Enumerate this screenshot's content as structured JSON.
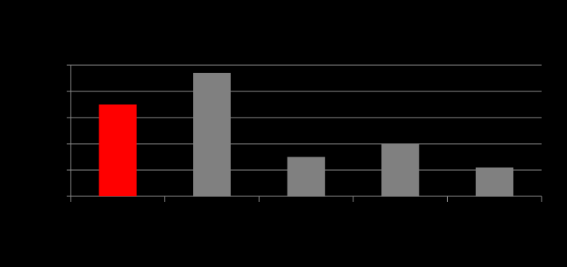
{
  "chart_data": {
    "type": "bar",
    "categories": [
      null,
      null,
      null,
      null,
      null
    ],
    "values": [
      3.5,
      4.7,
      1.5,
      2,
      1.1
    ],
    "colors": [
      "#ff0000",
      "#808080",
      "#808080",
      "#808080",
      "#808080"
    ],
    "ylim": [
      0,
      5
    ],
    "yticks": [
      0,
      1,
      2,
      3,
      4,
      5
    ],
    "grid": true
  }
}
